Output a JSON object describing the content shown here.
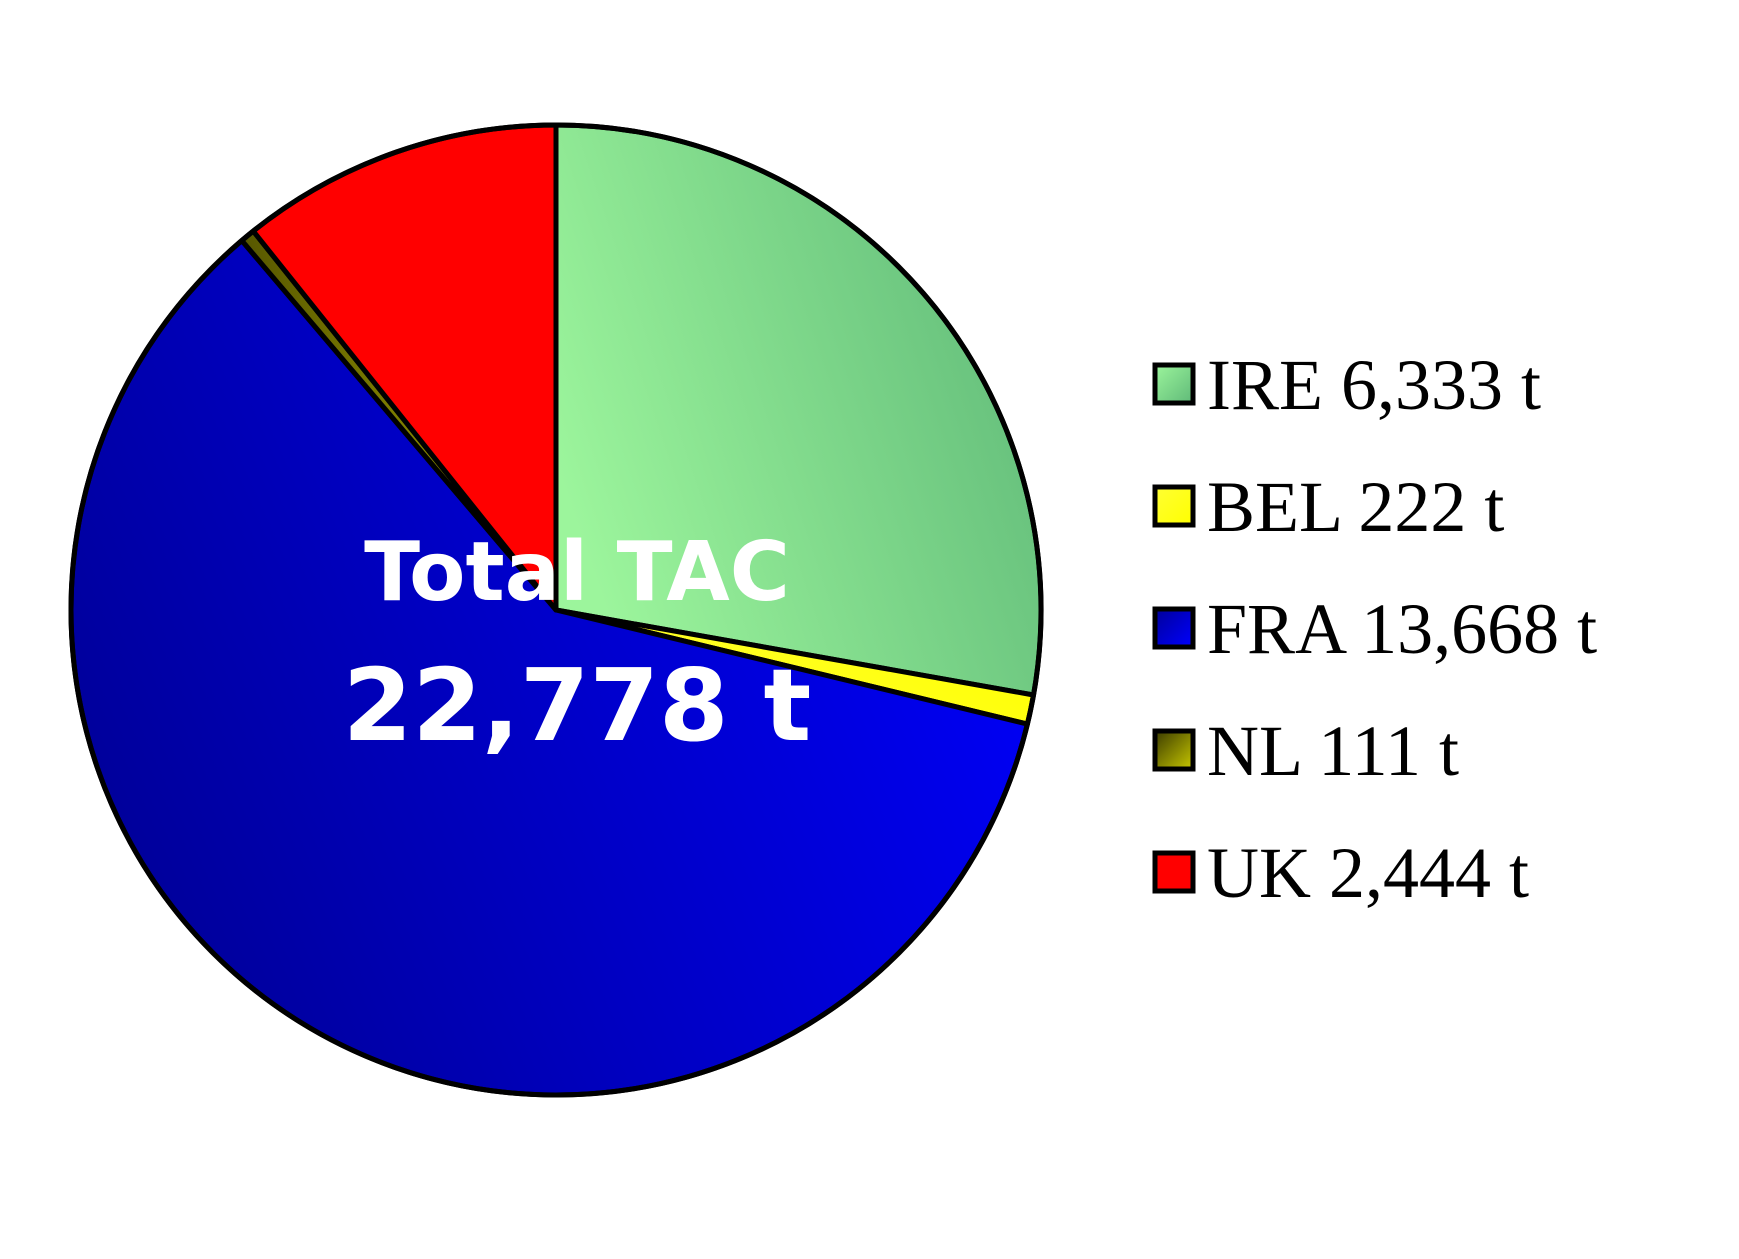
{
  "chart_data": {
    "type": "pie",
    "title": "",
    "center_label": {
      "line1": "Total TAC",
      "line2": "22,778 t"
    },
    "slices": [
      {
        "label": "IRE 6,333 t",
        "name": "IRE",
        "value": 6333,
        "color": "#5fb978",
        "color_light": "#9cf59c"
      },
      {
        "label": "BEL 222 t",
        "name": "BEL",
        "value": 222,
        "color": "#ffff00",
        "color_light": "#ffff33"
      },
      {
        "label": "FRA 13,668 t",
        "name": "FRA",
        "value": 13668,
        "color": "#0000ff",
        "color_light": "#00009a"
      },
      {
        "label": "NL 111 t",
        "name": "NL",
        "value": 111,
        "color": "#c8c800",
        "color_light": "#3a3a00"
      },
      {
        "label": "UK 2,444 t",
        "name": "UK",
        "value": 2444,
        "color": "#ff0000",
        "color_light": "#ff0000"
      }
    ],
    "start_angle": "12 o'clock",
    "direction": "clockwise",
    "legend_position": "right"
  }
}
